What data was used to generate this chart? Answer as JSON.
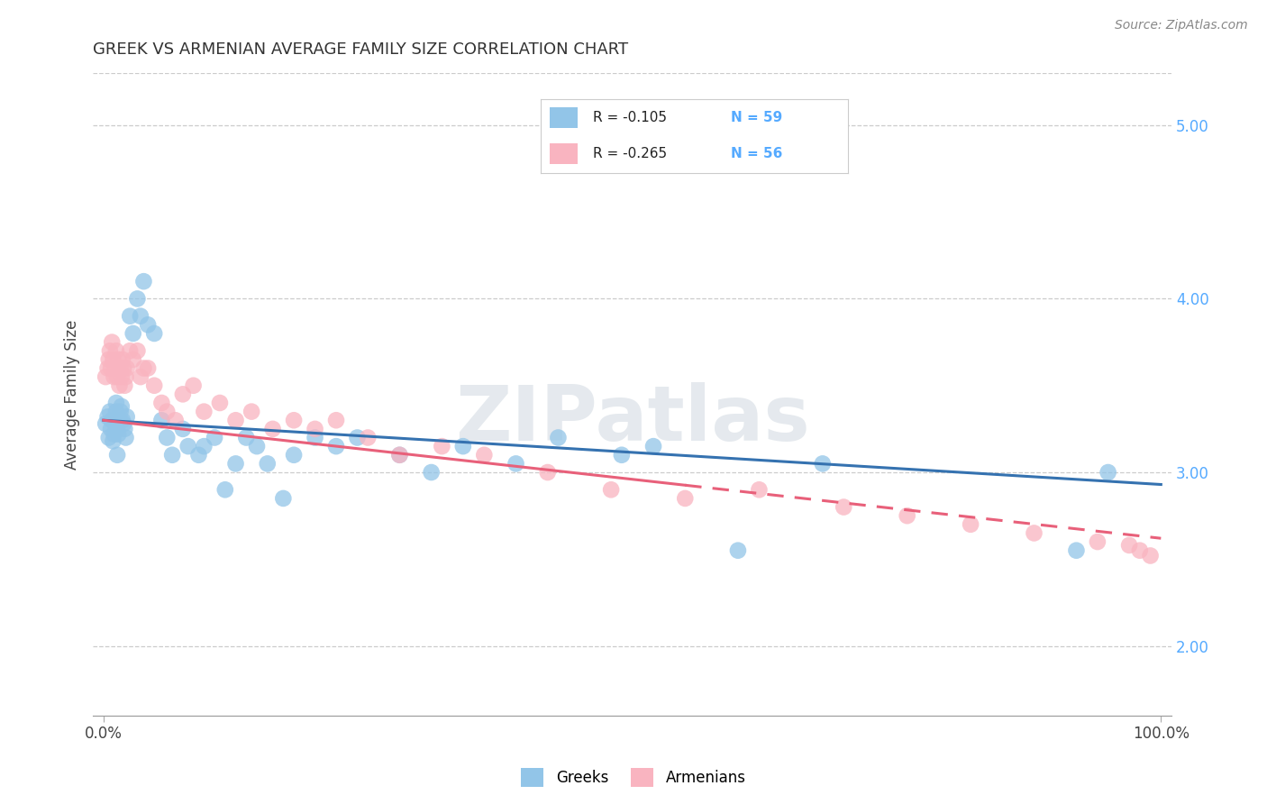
{
  "title": "GREEK VS ARMENIAN AVERAGE FAMILY SIZE CORRELATION CHART",
  "source": "Source: ZipAtlas.com",
  "ylabel": "Average Family Size",
  "watermark": "ZIPatlas",
  "ylim": [
    1.6,
    5.3
  ],
  "xlim": [
    -0.01,
    1.01
  ],
  "yticks": [
    2.0,
    3.0,
    4.0,
    5.0
  ],
  "legend_greek_R": "-0.105",
  "legend_greek_N": "59",
  "legend_armenian_R": "-0.265",
  "legend_armenian_N": "56",
  "greek_color": "#92c5e8",
  "armenian_color": "#f9b4c0",
  "greek_line_color": "#3572b0",
  "armenian_line_color": "#e8607a",
  "background_color": "#ffffff",
  "greek_x": [
    0.002,
    0.004,
    0.005,
    0.006,
    0.007,
    0.008,
    0.009,
    0.01,
    0.01,
    0.011,
    0.012,
    0.012,
    0.013,
    0.013,
    0.014,
    0.015,
    0.016,
    0.017,
    0.018,
    0.019,
    0.02,
    0.021,
    0.022,
    0.025,
    0.028,
    0.032,
    0.035,
    0.038,
    0.042,
    0.048,
    0.055,
    0.06,
    0.065,
    0.075,
    0.08,
    0.09,
    0.095,
    0.105,
    0.115,
    0.125,
    0.135,
    0.145,
    0.155,
    0.17,
    0.18,
    0.2,
    0.22,
    0.24,
    0.28,
    0.31,
    0.34,
    0.39,
    0.43,
    0.49,
    0.52,
    0.6,
    0.68,
    0.92,
    0.95
  ],
  "greek_y": [
    3.28,
    3.32,
    3.2,
    3.35,
    3.25,
    3.3,
    3.18,
    3.22,
    3.3,
    3.28,
    3.35,
    3.4,
    3.1,
    3.25,
    3.22,
    3.3,
    3.35,
    3.38,
    3.3,
    3.28,
    3.25,
    3.2,
    3.32,
    3.9,
    3.8,
    4.0,
    3.9,
    4.1,
    3.85,
    3.8,
    3.3,
    3.2,
    3.1,
    3.25,
    3.15,
    3.1,
    3.15,
    3.2,
    2.9,
    3.05,
    3.2,
    3.15,
    3.05,
    2.85,
    3.1,
    3.2,
    3.15,
    3.2,
    3.1,
    3.0,
    3.15,
    3.05,
    3.2,
    3.1,
    3.15,
    2.55,
    3.05,
    2.55,
    3.0
  ],
  "armenian_x": [
    0.002,
    0.004,
    0.005,
    0.006,
    0.007,
    0.008,
    0.009,
    0.01,
    0.011,
    0.012,
    0.013,
    0.014,
    0.015,
    0.016,
    0.017,
    0.018,
    0.019,
    0.02,
    0.021,
    0.022,
    0.025,
    0.028,
    0.032,
    0.035,
    0.038,
    0.042,
    0.048,
    0.055,
    0.06,
    0.068,
    0.075,
    0.085,
    0.095,
    0.11,
    0.125,
    0.14,
    0.16,
    0.18,
    0.2,
    0.22,
    0.25,
    0.28,
    0.32,
    0.36,
    0.42,
    0.48,
    0.55,
    0.62,
    0.7,
    0.76,
    0.82,
    0.88,
    0.94,
    0.97,
    0.98,
    0.99
  ],
  "armenian_y": [
    3.55,
    3.6,
    3.65,
    3.7,
    3.6,
    3.75,
    3.65,
    3.55,
    3.6,
    3.7,
    3.55,
    3.65,
    3.5,
    3.6,
    3.55,
    3.65,
    3.6,
    3.5,
    3.55,
    3.6,
    3.7,
    3.65,
    3.7,
    3.55,
    3.6,
    3.6,
    3.5,
    3.4,
    3.35,
    3.3,
    3.45,
    3.5,
    3.35,
    3.4,
    3.3,
    3.35,
    3.25,
    3.3,
    3.25,
    3.3,
    3.2,
    3.1,
    3.15,
    3.1,
    3.0,
    2.9,
    2.85,
    2.9,
    2.8,
    2.75,
    2.7,
    2.65,
    2.6,
    2.58,
    2.55,
    2.52
  ]
}
